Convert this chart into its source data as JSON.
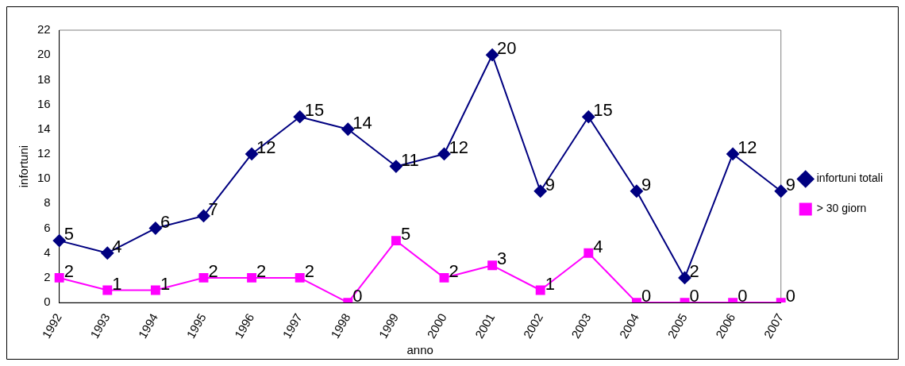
{
  "chart_data": {
    "type": "line",
    "xlabel": "anno",
    "ylabel": "infortuni",
    "categories": [
      "1992",
      "1993",
      "1994",
      "1995",
      "1996",
      "1997",
      "1998",
      "1999",
      "2000",
      "2001",
      "2002",
      "2003",
      "2004",
      "2005",
      "2006",
      "2007"
    ],
    "series": [
      {
        "name": "infortuni totali",
        "color": "#000080",
        "marker": "diamond",
        "values": [
          5,
          4,
          6,
          7,
          12,
          15,
          14,
          11,
          12,
          20,
          9,
          15,
          9,
          2,
          12,
          9
        ]
      },
      {
        "name": "> 30 giorn",
        "color": "#ff00ff",
        "marker": "square",
        "values": [
          2,
          1,
          1,
          2,
          2,
          2,
          0,
          5,
          2,
          3,
          1,
          4,
          0,
          0,
          0,
          0
        ]
      }
    ],
    "ylim": [
      0,
      22
    ],
    "yticks": [
      0,
      2,
      4,
      6,
      8,
      10,
      12,
      14,
      16,
      18,
      20,
      22
    ],
    "grid": false,
    "legend": "right",
    "data_labels": true,
    "line_style": "solid"
  }
}
